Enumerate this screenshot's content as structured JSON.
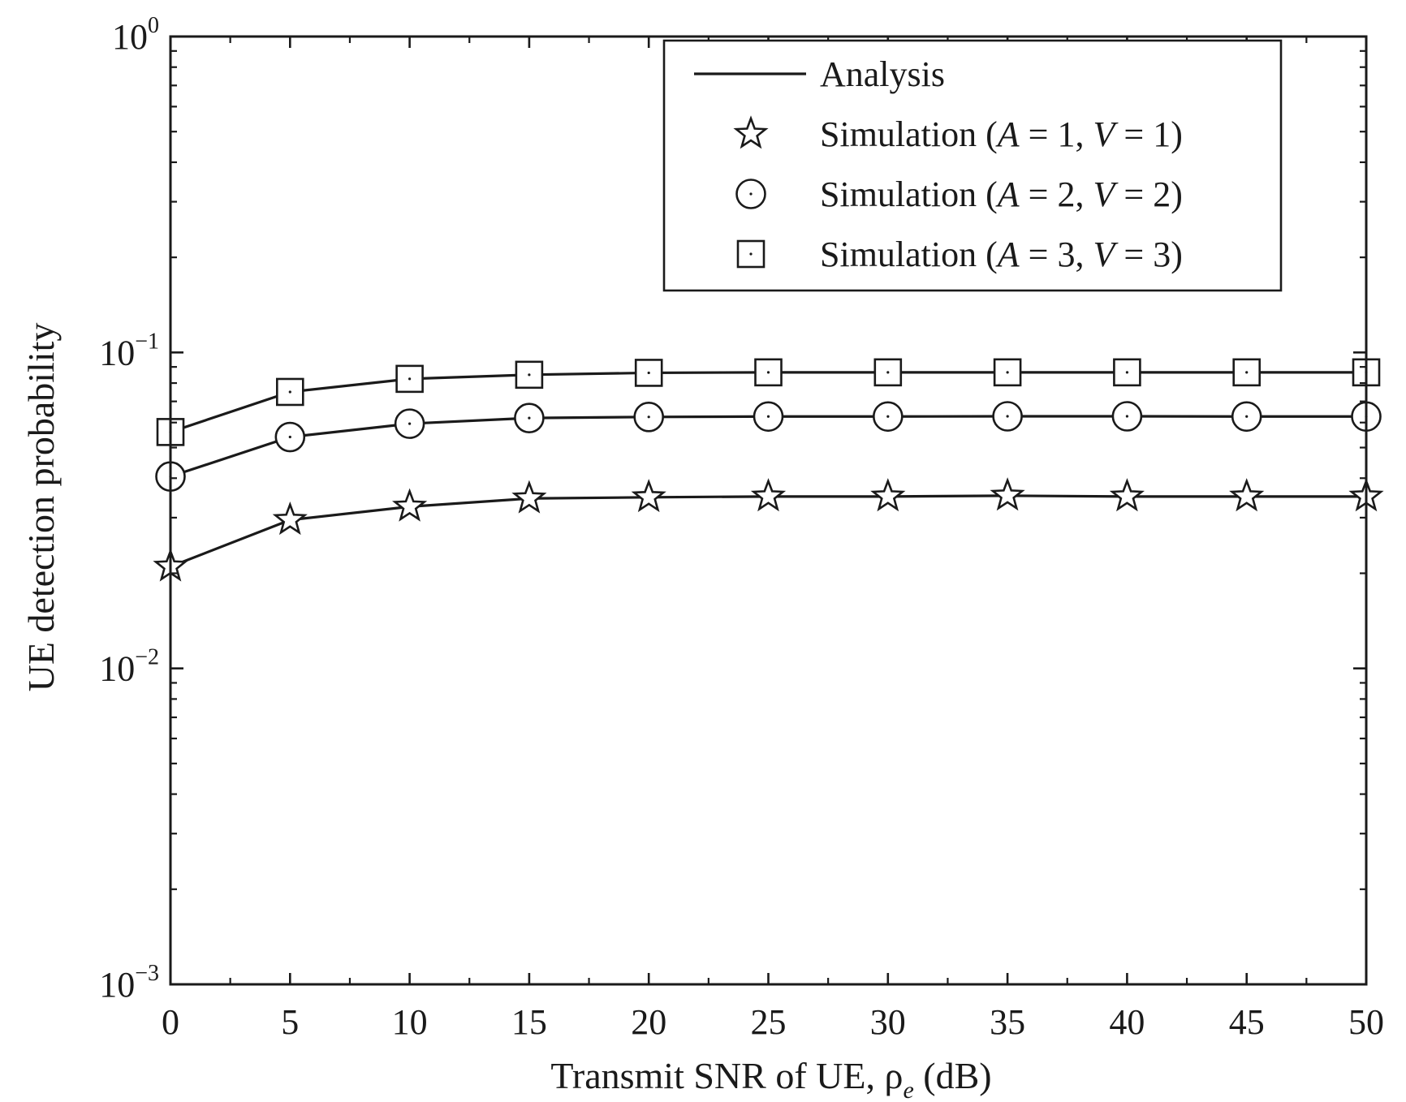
{
  "chart_data": {
    "type": "line",
    "title": "",
    "xlabel": "Transmit SNR of UE, ρ",
    "xlabel_subscript": "e",
    "xlabel_suffix": " (dB)",
    "ylabel": "UE detection probability",
    "yscale": "log",
    "xlim": [
      0,
      50
    ],
    "ylim": [
      0.001,
      1
    ],
    "grid": false,
    "legend_position": "top-right",
    "x_ticks": [
      0,
      5,
      10,
      15,
      20,
      25,
      30,
      35,
      40,
      45,
      50
    ],
    "x_tick_labels": [
      "0",
      "5",
      "10",
      "15",
      "20",
      "25",
      "30",
      "35",
      "40",
      "45",
      "50"
    ],
    "y_major_ticks": [
      {
        "value": 1,
        "base": "10",
        "exp": "0"
      },
      {
        "value": 0.1,
        "base": "10",
        "exp": "−1"
      },
      {
        "value": 0.01,
        "base": "10",
        "exp": "−2"
      },
      {
        "value": 0.001,
        "base": "10",
        "exp": "−3"
      }
    ],
    "legend": [
      {
        "marker": "line",
        "label": "Analysis"
      },
      {
        "marker": "star",
        "label": "Simulation (A = 1, V = 1)",
        "prefix": "Simulation (",
        "a_var": "A",
        "a_val": " = 1, ",
        "v_var": "V",
        "v_val": " = 1)"
      },
      {
        "marker": "circle",
        "label": "Simulation (A = 2, V = 2)",
        "prefix": "Simulation (",
        "a_var": "A",
        "a_val": " = 2, ",
        "v_var": "V",
        "v_val": " = 2)"
      },
      {
        "marker": "square",
        "label": "Simulation (A = 3, V = 3)",
        "prefix": "Simulation (",
        "a_var": "A",
        "a_val": " = 3, ",
        "v_var": "V",
        "v_val": " = 3)"
      }
    ],
    "x": [
      0,
      5,
      10,
      15,
      20,
      25,
      30,
      35,
      40,
      45,
      50
    ],
    "series": [
      {
        "marker": "star",
        "values": [
          0.021,
          0.0295,
          0.0325,
          0.0345,
          0.0348,
          0.035,
          0.035,
          0.0352,
          0.035,
          0.035,
          0.035
        ]
      },
      {
        "marker": "circle",
        "values": [
          0.0405,
          0.054,
          0.0595,
          0.062,
          0.0625,
          0.0627,
          0.0627,
          0.0628,
          0.0628,
          0.0627,
          0.0627
        ]
      },
      {
        "marker": "square",
        "values": [
          0.056,
          0.075,
          0.0825,
          0.085,
          0.0862,
          0.0865,
          0.0865,
          0.0865,
          0.0865,
          0.0865,
          0.0865
        ]
      }
    ],
    "colors": {
      "line": "#1a1a1a",
      "marker_fill": "#ffffff",
      "background": "#ffffff"
    }
  }
}
